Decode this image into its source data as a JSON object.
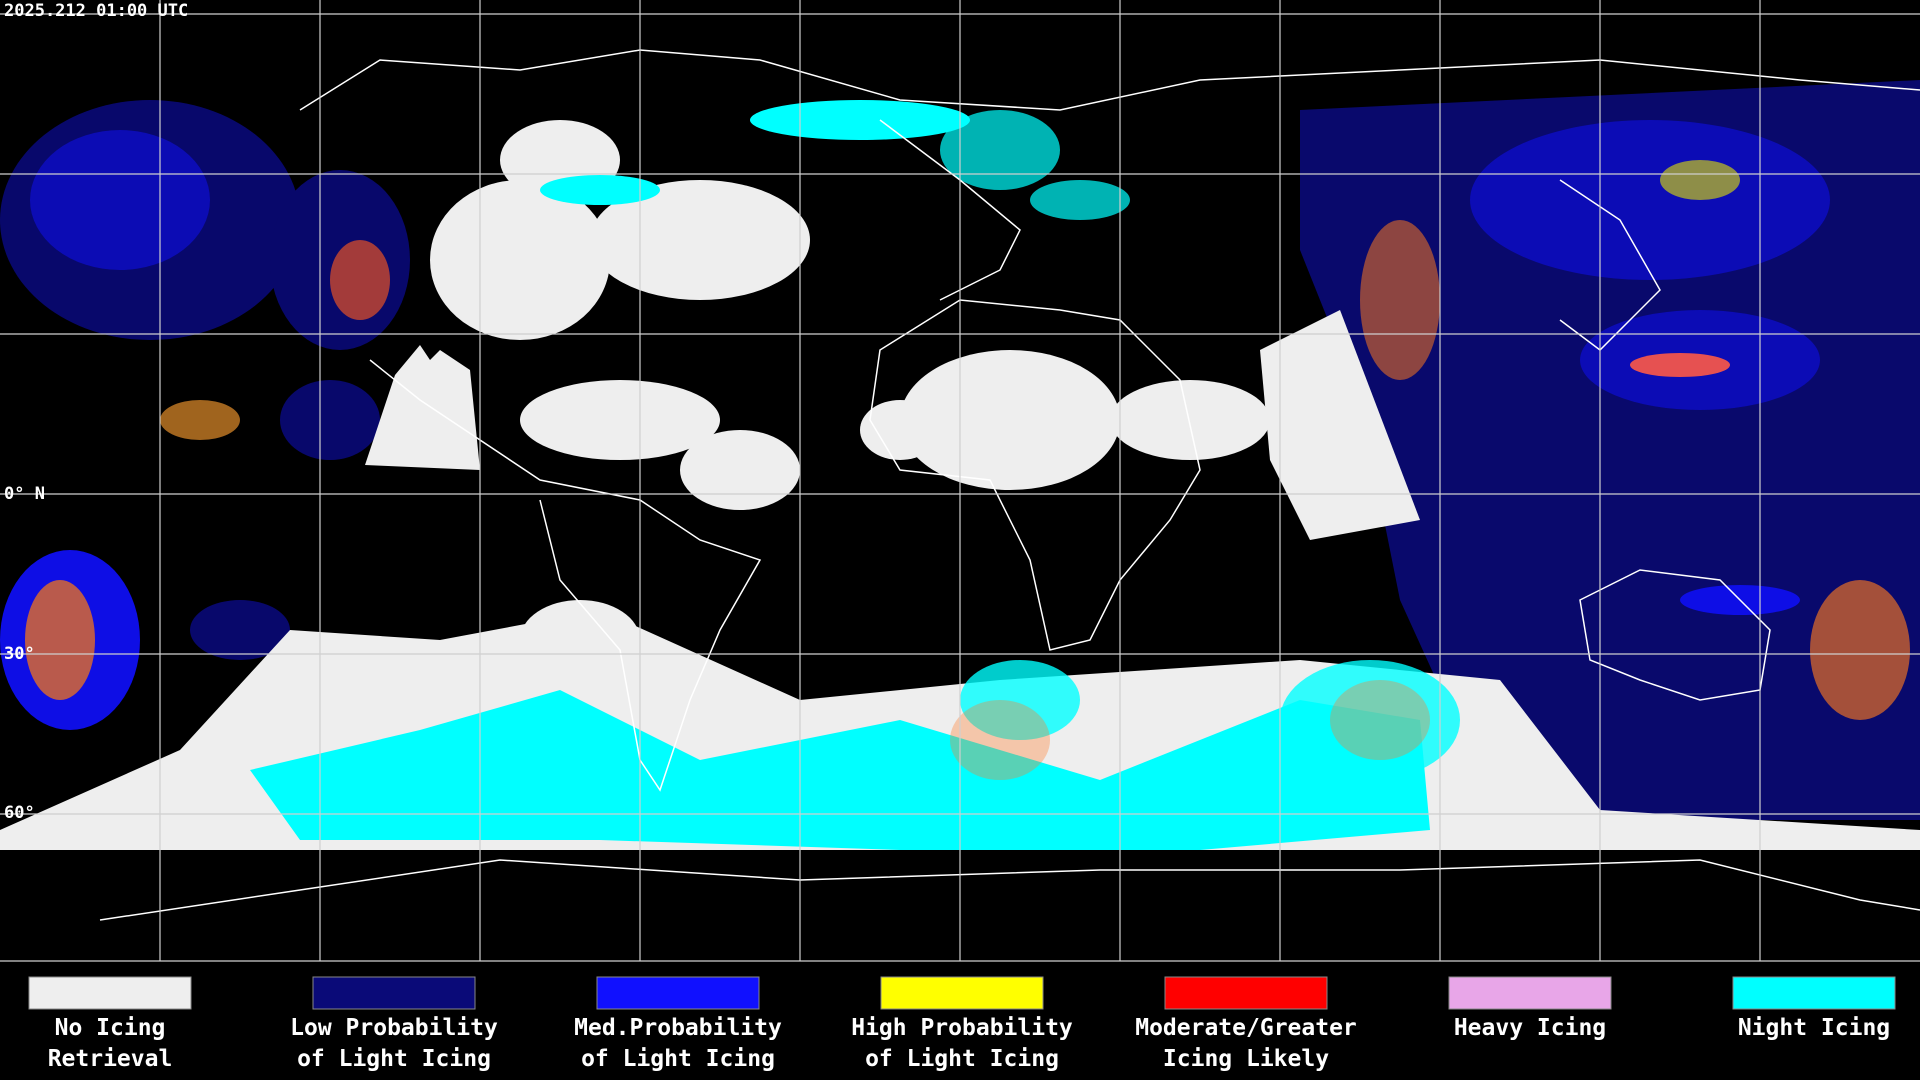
{
  "header": {
    "title": "2025.212 01:00 UTC"
  },
  "map": {
    "latitude_labels": [
      "0° N",
      "30°",
      "60°"
    ]
  },
  "legend": {
    "items": [
      {
        "color": "#eeeeee",
        "lines": [
          "No Icing",
          "Retrieval"
        ]
      },
      {
        "color": "#0a0a78",
        "lines": [
          "Low Probability",
          "of Light Icing"
        ]
      },
      {
        "color": "#1010ff",
        "lines": [
          "Med.Probability",
          "of Light Icing"
        ]
      },
      {
        "color": "#ffff00",
        "lines": [
          "High Probability",
          "of Light Icing"
        ]
      },
      {
        "color": "#ff0000",
        "lines": [
          "Moderate/Greater",
          "Icing Likely"
        ]
      },
      {
        "color": "#e8a6e8",
        "lines": [
          "Heavy Icing"
        ]
      },
      {
        "color": "#00ffff",
        "lines": [
          "Night Icing"
        ]
      }
    ]
  }
}
